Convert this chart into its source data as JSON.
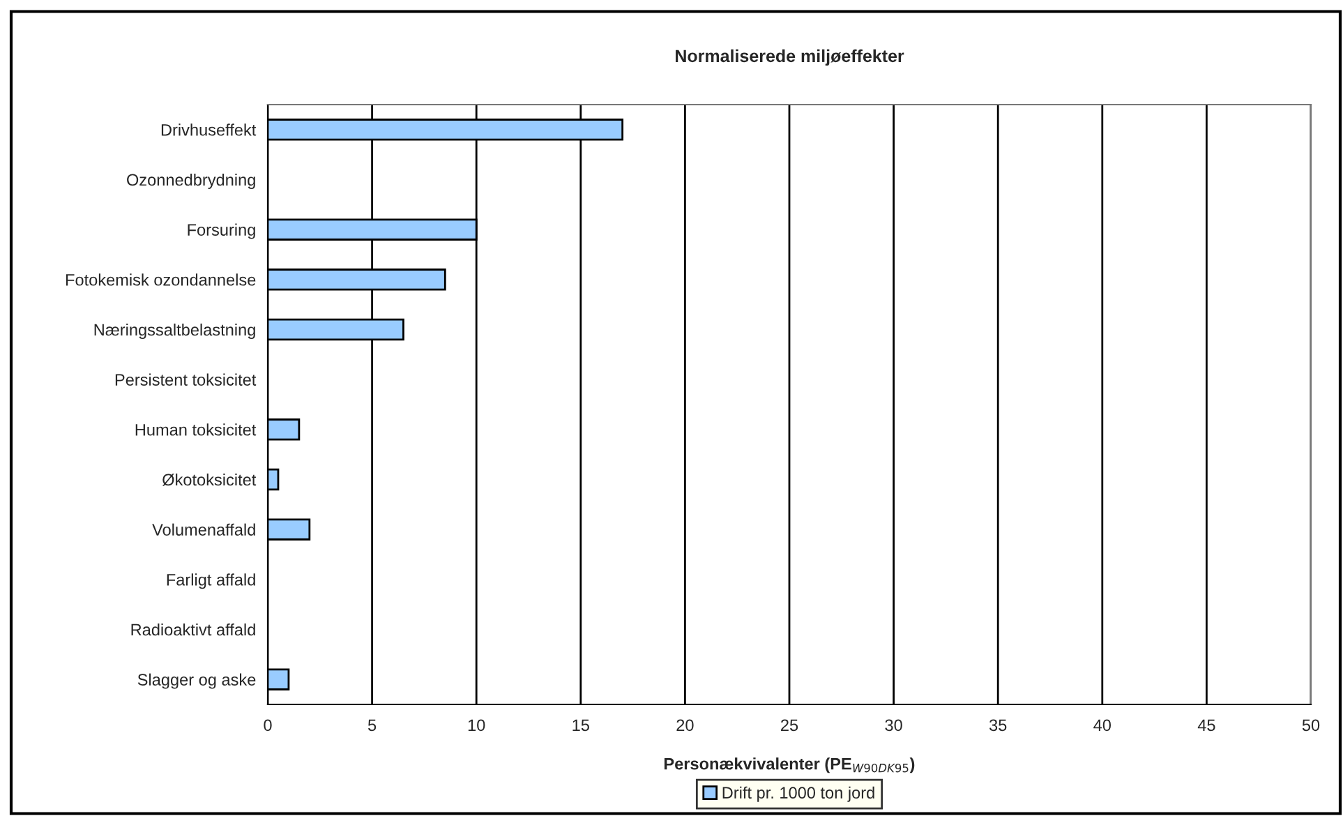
{
  "chart_data": {
    "type": "bar",
    "orientation": "horizontal",
    "title": "Normaliserede miljøeffekter",
    "xlabel": "Personækvivalenter (PE$_{W90DK95}$)",
    "categories": [
      "Drivhuseffekt",
      "Ozonnedbrydning",
      "Forsuring",
      "Fotokemisk ozondannelse",
      "Næringssaltbelastning",
      "Persistent toksicitet",
      "Human toksicitet",
      "Økotoksicitet",
      "Volumenaffald",
      "Farligt affald",
      "Radioaktivt affald",
      "Slagger og aske"
    ],
    "series": [
      {
        "name": "Drift pr. 1000 ton jord",
        "color": "#99ccff",
        "values": [
          17,
          null,
          10,
          8.5,
          6.5,
          null,
          1.5,
          0.5,
          2,
          null,
          null,
          1
        ]
      }
    ],
    "xlim": [
      0,
      50
    ],
    "xticks": [
      0,
      5,
      10,
      15,
      20,
      25,
      30,
      35,
      40,
      45,
      50
    ],
    "grid": "x",
    "legend": "bottom"
  }
}
